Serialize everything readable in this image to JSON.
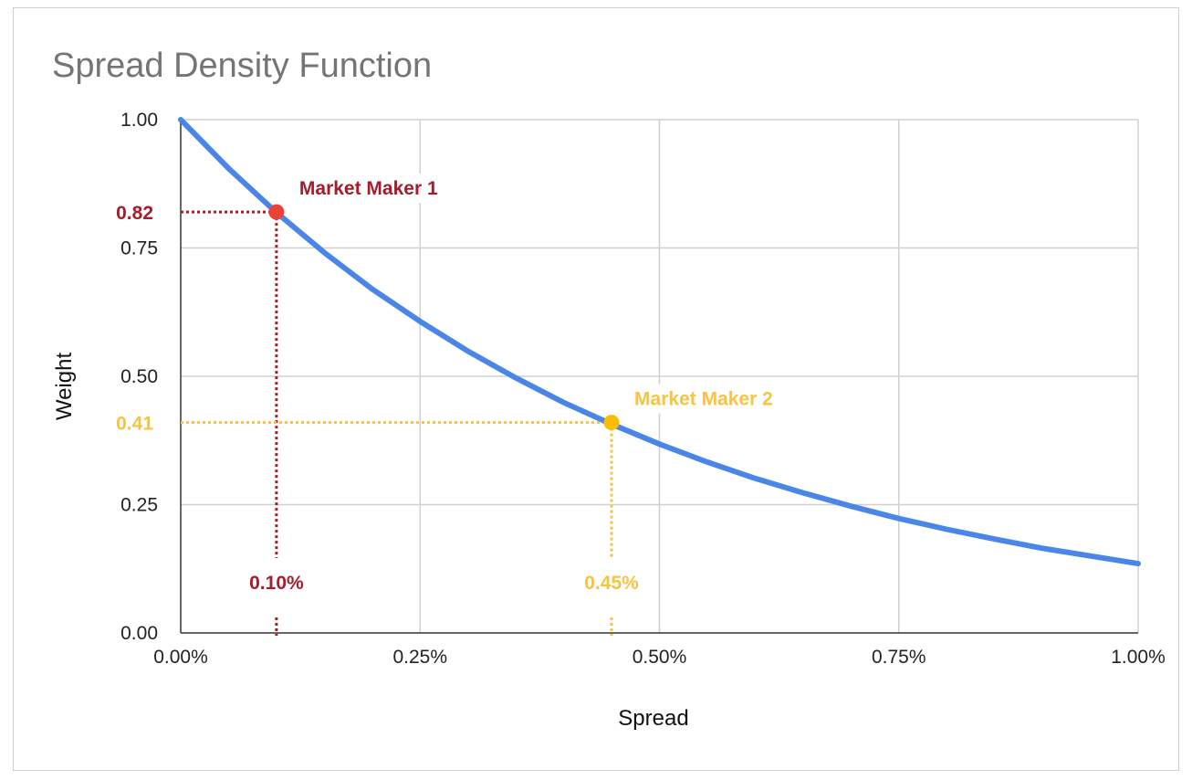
{
  "chart_data": {
    "type": "line",
    "title": "Spread Density Function",
    "xlabel": "Spread",
    "ylabel": "Weight",
    "xlim": [
      0,
      1.0
    ],
    "ylim": [
      0,
      1.0
    ],
    "x_unit": "%",
    "x_ticks": [
      "0.00%",
      "0.25%",
      "0.50%",
      "0.75%",
      "1.00%"
    ],
    "x_tick_values": [
      0,
      0.25,
      0.5,
      0.75,
      1.0
    ],
    "y_ticks": [
      "0.00",
      "0.25",
      "0.50",
      "0.75",
      "1.00"
    ],
    "y_tick_values": [
      0,
      0.25,
      0.5,
      0.75,
      1.0
    ],
    "grid": true,
    "series": [
      {
        "name": "Weight",
        "color": "#4a86e8",
        "x": [
          0,
          0.05,
          0.1,
          0.15,
          0.2,
          0.25,
          0.3,
          0.35,
          0.4,
          0.45,
          0.5,
          0.55,
          0.6,
          0.65,
          0.7,
          0.75,
          0.8,
          0.85,
          0.9,
          0.95,
          1.0
        ],
        "values": [
          1.0,
          0.905,
          0.819,
          0.741,
          0.67,
          0.607,
          0.549,
          0.497,
          0.449,
          0.407,
          0.368,
          0.333,
          0.301,
          0.273,
          0.247,
          0.223,
          0.202,
          0.183,
          0.165,
          0.15,
          0.135
        ]
      }
    ],
    "annotations": [
      {
        "label": "Market Maker 1",
        "x": 0.1,
        "y": 0.82,
        "x_label": "0.10%",
        "y_label": "0.82",
        "color": "#a61c2b",
        "dot_color": "#ea4335"
      },
      {
        "label": "Market Maker 2",
        "x": 0.45,
        "y": 0.41,
        "x_label": "0.45%",
        "y_label": "0.41",
        "color": "#f6c342",
        "dot_color": "#fbbc04"
      }
    ]
  }
}
